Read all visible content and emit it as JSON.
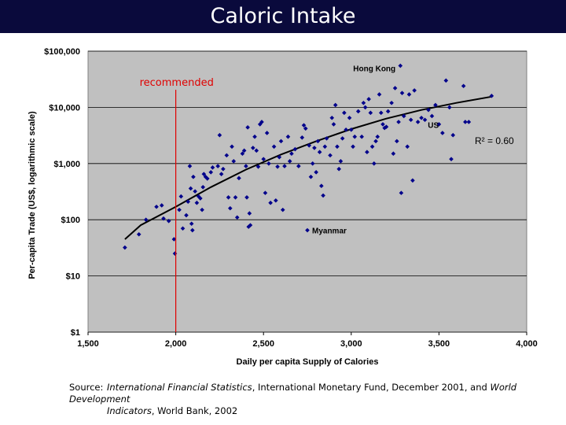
{
  "slide_title": "Caloric Intake",
  "source": {
    "label": "Source:",
    "line1_a": "International Financial Statistics",
    "line1_b": ", International Monetary Fund, December 2001, and ",
    "line1_c": "World Development",
    "line2_a": "Indicators",
    "line2_b": ", World Bank, 2002"
  },
  "colors": {
    "title_bg": "#0a0a3c",
    "plot_bg": "#c0c0c0",
    "points": "#00008b",
    "recommended_line": "#e00000"
  },
  "chart_data": {
    "type": "scatter",
    "xlabel": "Daily per capita Supply of Calories",
    "ylabel": "Per-capita Trade (US$, logarithmic scale)",
    "xlim": [
      1500,
      4000
    ],
    "ylim": [
      1,
      100000
    ],
    "y_scale": "log",
    "x_ticks": [
      1500,
      2000,
      2500,
      3000,
      3500,
      4000
    ],
    "x_tick_labels": [
      "1,500",
      "2,000",
      "2,500",
      "3,000",
      "3,500",
      "4,000"
    ],
    "y_ticks": [
      1,
      10,
      100,
      1000,
      10000,
      100000
    ],
    "y_tick_labels": [
      "$1",
      "$10",
      "$100",
      "$1,000",
      "$10,000",
      "$100,000"
    ],
    "grid": "horizontal",
    "r_squared_label": "R² = 0.60",
    "recommended": {
      "x": 2000,
      "label": "recommended"
    },
    "trend": [
      [
        1710,
        45
      ],
      [
        1800,
        80
      ],
      [
        2000,
        170
      ],
      [
        2200,
        380
      ],
      [
        2400,
        780
      ],
      [
        2600,
        1450
      ],
      [
        2800,
        2500
      ],
      [
        3000,
        4100
      ],
      [
        3200,
        6300
      ],
      [
        3400,
        9000
      ],
      [
        3600,
        12000
      ],
      [
        3800,
        15500
      ]
    ],
    "annotations": [
      {
        "text": "Hong Kong",
        "x": 3280,
        "y": 57000
      },
      {
        "text": "US",
        "x": 3580,
        "y": 9000
      },
      {
        "text": "Myanmar",
        "x": 2750,
        "y": 63
      }
    ],
    "points": [
      [
        1710,
        32
      ],
      [
        1790,
        55
      ],
      [
        1830,
        100
      ],
      [
        1890,
        170
      ],
      [
        1920,
        180
      ],
      [
        1930,
        105
      ],
      [
        1960,
        95
      ],
      [
        1990,
        45
      ],
      [
        1995,
        25
      ],
      [
        2020,
        150
      ],
      [
        2030,
        260
      ],
      [
        2040,
        70
      ],
      [
        2060,
        120
      ],
      [
        2070,
        210
      ],
      [
        2080,
        900
      ],
      [
        2085,
        360
      ],
      [
        2090,
        85
      ],
      [
        2095,
        65
      ],
      [
        2100,
        580
      ],
      [
        2110,
        320
      ],
      [
        2120,
        200
      ],
      [
        2130,
        260
      ],
      [
        2140,
        240
      ],
      [
        2150,
        150
      ],
      [
        2155,
        380
      ],
      [
        2160,
        650
      ],
      [
        2170,
        580
      ],
      [
        2180,
        540
      ],
      [
        2200,
        700
      ],
      [
        2210,
        850
      ],
      [
        2240,
        900
      ],
      [
        2250,
        3200
      ],
      [
        2260,
        650
      ],
      [
        2270,
        800
      ],
      [
        2290,
        1400
      ],
      [
        2300,
        250
      ],
      [
        2310,
        160
      ],
      [
        2320,
        2000
      ],
      [
        2330,
        1100
      ],
      [
        2340,
        250
      ],
      [
        2350,
        110
      ],
      [
        2360,
        550
      ],
      [
        2380,
        1500
      ],
      [
        2390,
        1700
      ],
      [
        2400,
        900
      ],
      [
        2405,
        250
      ],
      [
        2410,
        4400
      ],
      [
        2415,
        75
      ],
      [
        2420,
        130
      ],
      [
        2425,
        80
      ],
      [
        2440,
        1900
      ],
      [
        2450,
        3000
      ],
      [
        2460,
        1700
      ],
      [
        2470,
        880
      ],
      [
        2480,
        5000
      ],
      [
        2490,
        5500
      ],
      [
        2500,
        1200
      ],
      [
        2510,
        300
      ],
      [
        2520,
        3500
      ],
      [
        2530,
        1000
      ],
      [
        2540,
        200
      ],
      [
        2560,
        2000
      ],
      [
        2570,
        220
      ],
      [
        2580,
        880
      ],
      [
        2590,
        1300
      ],
      [
        2600,
        2500
      ],
      [
        2610,
        150
      ],
      [
        2620,
        900
      ],
      [
        2640,
        3000
      ],
      [
        2650,
        1100
      ],
      [
        2660,
        1500
      ],
      [
        2680,
        1800
      ],
      [
        2700,
        900
      ],
      [
        2720,
        2900
      ],
      [
        2730,
        4800
      ],
      [
        2740,
        4200
      ],
      [
        2750,
        65
      ],
      [
        2760,
        2100
      ],
      [
        2770,
        580
      ],
      [
        2780,
        1000
      ],
      [
        2790,
        1900
      ],
      [
        2800,
        700
      ],
      [
        2810,
        2500
      ],
      [
        2820,
        1600
      ],
      [
        2830,
        400
      ],
      [
        2840,
        270
      ],
      [
        2850,
        2000
      ],
      [
        2860,
        2800
      ],
      [
        2880,
        1400
      ],
      [
        2890,
        6500
      ],
      [
        2900,
        5000
      ],
      [
        2910,
        11000
      ],
      [
        2920,
        2000
      ],
      [
        2930,
        800
      ],
      [
        2940,
        1100
      ],
      [
        2950,
        2800
      ],
      [
        2960,
        8000
      ],
      [
        2970,
        4000
      ],
      [
        2990,
        6500
      ],
      [
        3000,
        4000
      ],
      [
        3010,
        2000
      ],
      [
        3020,
        3000
      ],
      [
        3040,
        8500
      ],
      [
        3060,
        3000
      ],
      [
        3070,
        12000
      ],
      [
        3080,
        10000
      ],
      [
        3090,
        1600
      ],
      [
        3100,
        14000
      ],
      [
        3110,
        8000
      ],
      [
        3120,
        2000
      ],
      [
        3130,
        1000
      ],
      [
        3140,
        2500
      ],
      [
        3150,
        3000
      ],
      [
        3160,
        17000
      ],
      [
        3170,
        8000
      ],
      [
        3180,
        5000
      ],
      [
        3190,
        4300
      ],
      [
        3200,
        4500
      ],
      [
        3210,
        8500
      ],
      [
        3230,
        12000
      ],
      [
        3240,
        1500
      ],
      [
        3250,
        22000
      ],
      [
        3260,
        2500
      ],
      [
        3270,
        5500
      ],
      [
        3280,
        55000
      ],
      [
        3285,
        300
      ],
      [
        3290,
        18000
      ],
      [
        3300,
        7000
      ],
      [
        3320,
        2000
      ],
      [
        3330,
        17000
      ],
      [
        3340,
        6000
      ],
      [
        3350,
        500
      ],
      [
        3360,
        20000
      ],
      [
        3380,
        5500
      ],
      [
        3400,
        6500
      ],
      [
        3420,
        6000
      ],
      [
        3440,
        9000
      ],
      [
        3460,
        7000
      ],
      [
        3480,
        11000
      ],
      [
        3500,
        5000
      ],
      [
        3520,
        3500
      ],
      [
        3540,
        30000
      ],
      [
        3560,
        10000
      ],
      [
        3570,
        1200
      ],
      [
        3580,
        3200
      ],
      [
        3640,
        24000
      ],
      [
        3650,
        5500
      ],
      [
        3670,
        5500
      ],
      [
        3800,
        16000
      ]
    ]
  }
}
